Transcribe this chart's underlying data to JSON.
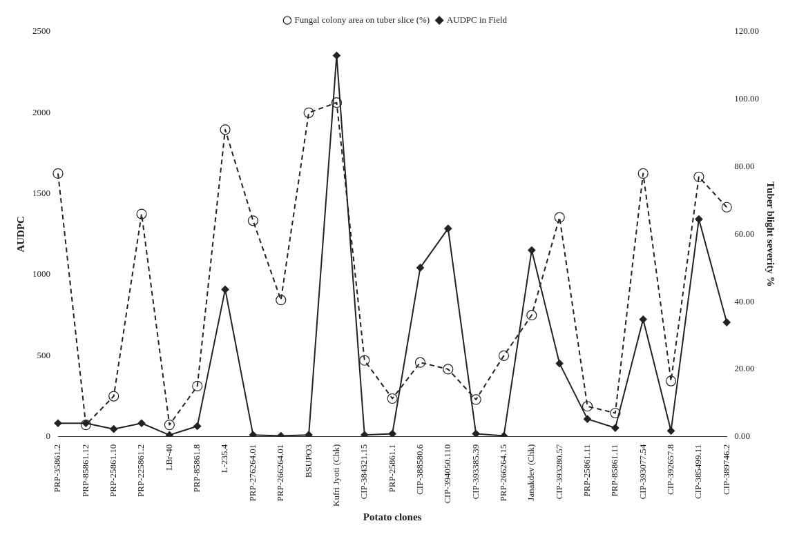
{
  "chart_data": {
    "type": "line",
    "xlabel": "Potato clones",
    "ylabel": "AUDPC",
    "y2label": "Tuber blight severity %",
    "categories": [
      "PRP-35861.2",
      "PRP-85861.12",
      "PRP-25861.10",
      "PRP-225861.2",
      "LBr-40",
      "PRP-85861.8",
      "L-235.4",
      "PRP-276264.01",
      "PRP-266264.01",
      "BSUPO3",
      "Kufri Jyoti (Chk)",
      "CIP-384321.15",
      "PRP-25861.1",
      "CIP-388580.6",
      "CIP-394050.110",
      "CIP-393385.39",
      "PRP-266264.15",
      "Janakdev (Chk)",
      "CIP-393280.57",
      "PRP-25861.11",
      "PRP-85861.11",
      "CIP-393077.54",
      "CIP-392657.8",
      "CIP-385499.11",
      "CIP-389746.2"
    ],
    "series": [
      {
        "name": "AUDPC in Field",
        "color": "#222222",
        "marker": "diamond",
        "line_style": "solid",
        "values": [
          83,
          83,
          47,
          83,
          10,
          65,
          909,
          11,
          5,
          11,
          2353,
          11,
          18,
          1043,
          1285,
          18,
          5,
          1151,
          452,
          109,
          54,
          724,
          36,
          1343,
          706
        ]
      },
      {
        "name": "Fungal colony area on tuber slice (%)",
        "color": "#222222",
        "marker": "circle",
        "line_style": "dashed",
        "axis": "y2",
        "values": [
          78,
          3.5,
          12,
          66,
          3.5,
          15,
          91,
          64,
          40.5,
          96,
          99,
          22.6,
          11.3,
          22,
          20,
          11,
          24,
          36,
          65,
          9,
          7,
          78,
          16.5,
          77,
          68
        ]
      }
    ],
    "ylim": [
      0,
      2500
    ],
    "yticks": [
      0,
      500,
      1000,
      1500,
      2000,
      2500
    ],
    "y2lim": [
      0,
      120
    ],
    "y2ticks": [
      {
        "value": 0,
        "label": "0.00"
      },
      {
        "value": 20,
        "label": "20.00"
      },
      {
        "value": 40,
        "label": "40.00"
      },
      {
        "value": 60,
        "label": "60.00"
      },
      {
        "value": 80,
        "label": "80.00"
      },
      {
        "value": 100,
        "label": "100.00"
      },
      {
        "value": 120,
        "label": "120.00"
      }
    ],
    "grid": false,
    "legend": "top"
  }
}
